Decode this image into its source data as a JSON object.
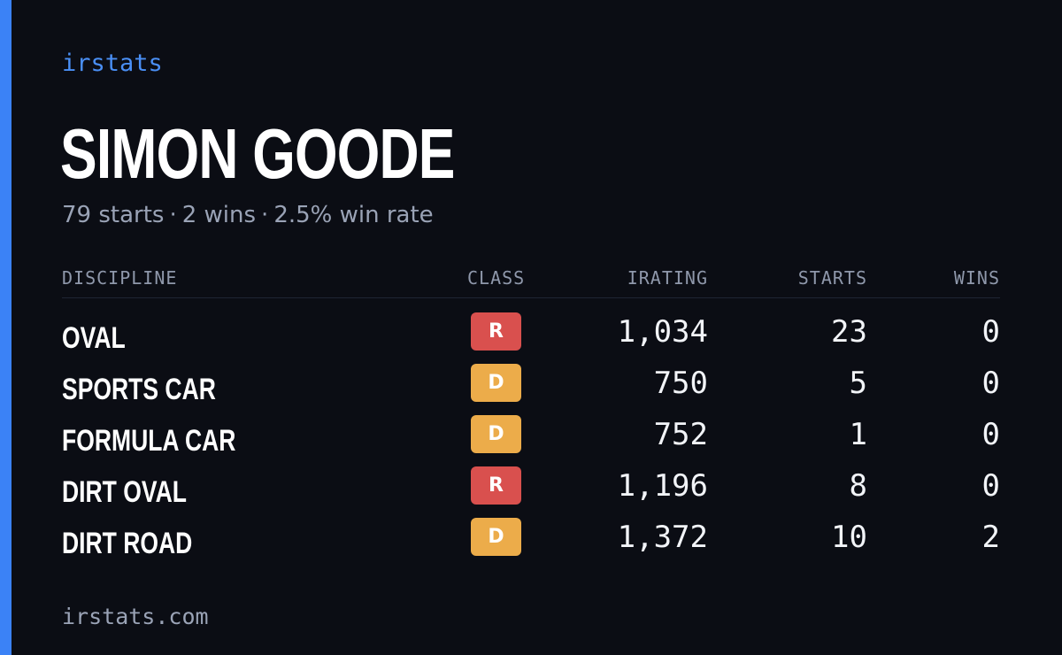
{
  "brand": "irstats",
  "driver": {
    "name": "SIMON GOODE",
    "starts_text": "79 starts",
    "wins_text": "2 wins",
    "win_rate_text": "2.5% win rate",
    "separator": "·"
  },
  "table": {
    "headers": {
      "discipline": "DISCIPLINE",
      "class": "CLASS",
      "irating": "IRATING",
      "starts": "STARTS",
      "wins": "WINS"
    },
    "rows": [
      {
        "discipline": "OVAL",
        "class": "R",
        "irating": "1,034",
        "starts": "23",
        "wins": "0"
      },
      {
        "discipline": "SPORTS CAR",
        "class": "D",
        "irating": "750",
        "starts": "5",
        "wins": "0"
      },
      {
        "discipline": "FORMULA CAR",
        "class": "D",
        "irating": "752",
        "starts": "1",
        "wins": "0"
      },
      {
        "discipline": "DIRT OVAL",
        "class": "R",
        "irating": "1,196",
        "starts": "8",
        "wins": "0"
      },
      {
        "discipline": "DIRT ROAD",
        "class": "D",
        "irating": "1,372",
        "starts": "10",
        "wins": "2"
      }
    ]
  },
  "class_colors": {
    "R": "#d9504e",
    "D": "#ecac4a"
  },
  "colors": {
    "accent": "#3b82f6",
    "background": "#0b0d14"
  },
  "footer": "irstats.com"
}
